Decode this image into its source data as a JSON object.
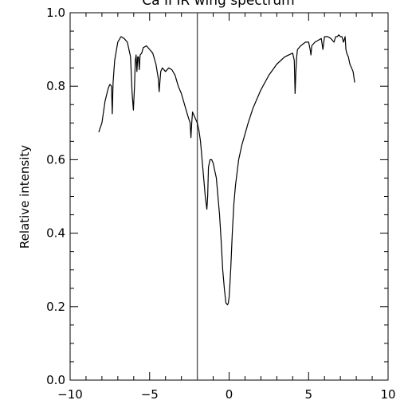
{
  "chart_data": {
    "type": "line",
    "title": "Ca II IR wing spectrum",
    "xlabel": "",
    "ylabel": "Relative intensity",
    "xlim": [
      -10,
      10
    ],
    "ylim": [
      0.0,
      1.0
    ],
    "grid": false,
    "x_ticks": [
      -10,
      -5,
      0,
      5,
      10
    ],
    "x_tick_labels": [
      "−10",
      "−5",
      "0",
      "5",
      "10"
    ],
    "y_ticks": [
      0.0,
      0.2,
      0.4,
      0.6,
      0.8,
      1.0
    ],
    "y_tick_labels": [
      "0.0",
      "0.2",
      "0.4",
      "0.6",
      "0.8",
      "1.0"
    ],
    "vertical_marker_x": -2.0,
    "series": [
      {
        "x": [
          -8.2,
          -8.0,
          -7.8,
          -7.6,
          -7.5,
          -7.4,
          -7.35,
          -7.3,
          -7.2,
          -7.0,
          -6.8,
          -6.6,
          -6.4,
          -6.2,
          -6.1,
          -6.02,
          -5.95,
          -5.9,
          -5.85,
          -5.8,
          -5.75,
          -5.7,
          -5.65,
          -5.6,
          -5.5,
          -5.4,
          -5.2,
          -5.0,
          -4.8,
          -4.6,
          -4.45,
          -4.4,
          -4.3,
          -4.2,
          -4.0,
          -3.8,
          -3.6,
          -3.4,
          -3.2,
          -3.0,
          -2.8,
          -2.6,
          -2.45,
          -2.4,
          -2.35,
          -2.3,
          -2.2,
          -2.0,
          -1.9,
          -1.8,
          -1.7,
          -1.6,
          -1.5,
          -1.4,
          -1.35,
          -1.3,
          -1.2,
          -1.1,
          -1.0,
          -0.9,
          -0.8,
          -0.7,
          -0.6,
          -0.5,
          -0.4,
          -0.3,
          -0.2,
          -0.1,
          -0.05,
          0.0,
          0.05,
          0.1,
          0.2,
          0.3,
          0.4,
          0.6,
          0.8,
          1.0,
          1.2,
          1.5,
          1.8,
          2.0,
          2.5,
          3.0,
          3.5,
          4.0,
          4.1,
          4.15,
          4.2,
          4.25,
          4.3,
          4.5,
          4.8,
          5.0,
          5.1,
          5.15,
          5.2,
          5.4,
          5.6,
          5.8,
          5.9,
          6.0,
          6.1,
          6.2,
          6.4,
          6.6,
          6.7,
          6.8,
          6.9,
          7.0,
          7.1,
          7.2,
          7.3,
          7.35,
          7.4,
          7.5,
          7.6,
          7.8,
          7.9
        ],
        "y": [
          0.675,
          0.7,
          0.76,
          0.795,
          0.805,
          0.8,
          0.725,
          0.81,
          0.87,
          0.92,
          0.935,
          0.93,
          0.92,
          0.88,
          0.78,
          0.735,
          0.8,
          0.87,
          0.885,
          0.84,
          0.88,
          0.88,
          0.845,
          0.885,
          0.89,
          0.905,
          0.91,
          0.9,
          0.89,
          0.86,
          0.82,
          0.785,
          0.84,
          0.85,
          0.84,
          0.85,
          0.845,
          0.83,
          0.8,
          0.78,
          0.75,
          0.72,
          0.7,
          0.66,
          0.7,
          0.73,
          0.72,
          0.7,
          0.68,
          0.65,
          0.6,
          0.55,
          0.5,
          0.465,
          0.5,
          0.58,
          0.6,
          0.6,
          0.59,
          0.57,
          0.55,
          0.5,
          0.45,
          0.38,
          0.3,
          0.25,
          0.21,
          0.205,
          0.21,
          0.225,
          0.26,
          0.3,
          0.4,
          0.48,
          0.53,
          0.6,
          0.64,
          0.67,
          0.7,
          0.74,
          0.77,
          0.79,
          0.83,
          0.86,
          0.88,
          0.89,
          0.87,
          0.78,
          0.84,
          0.88,
          0.9,
          0.91,
          0.92,
          0.92,
          0.9,
          0.885,
          0.91,
          0.92,
          0.925,
          0.93,
          0.9,
          0.935,
          0.935,
          0.935,
          0.93,
          0.92,
          0.935,
          0.935,
          0.94,
          0.935,
          0.935,
          0.92,
          0.935,
          0.9,
          0.89,
          0.88,
          0.86,
          0.84,
          0.81
        ]
      }
    ]
  }
}
